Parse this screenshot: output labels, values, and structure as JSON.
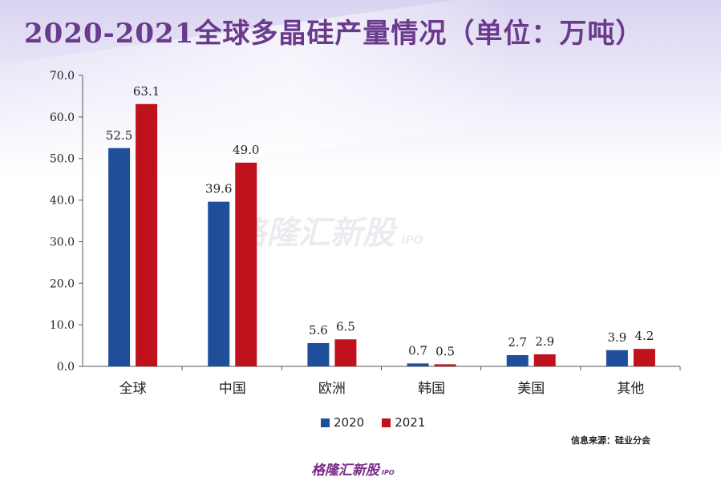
{
  "title": "2020-2021全球多晶硅产量情况（单位：万吨）",
  "source_text": "信息来源：硅业分会",
  "watermark": {
    "text": "格隆汇新股",
    "sub": "IPO"
  },
  "brand": {
    "text": "格隆汇新股",
    "sub": "IPO"
  },
  "colors": {
    "series_2020": "#1f4e9a",
    "series_2021": "#c0121c",
    "title": "#6a3a8c"
  },
  "legend": {
    "items": [
      {
        "label": "2020"
      },
      {
        "label": "2021"
      }
    ]
  },
  "chart_data": {
    "type": "bar",
    "title": "2020-2021全球多晶硅产量情况（单位：万吨）",
    "categories": [
      "全球",
      "中国",
      "欧洲",
      "韩国",
      "美国",
      "其他"
    ],
    "series": [
      {
        "name": "2020",
        "values": [
          52.5,
          39.6,
          5.6,
          0.7,
          2.7,
          3.9
        ]
      },
      {
        "name": "2021",
        "values": [
          63.1,
          49.0,
          6.5,
          0.5,
          2.9,
          4.2
        ]
      }
    ],
    "ylim": [
      0,
      70
    ],
    "yticks": [
      "0.0",
      "10.0",
      "20.0",
      "30.0",
      "40.0",
      "50.0",
      "60.0",
      "70.0"
    ],
    "xlabel": "",
    "ylabel": "",
    "grid": false,
    "legend_position": "bottom-center"
  }
}
